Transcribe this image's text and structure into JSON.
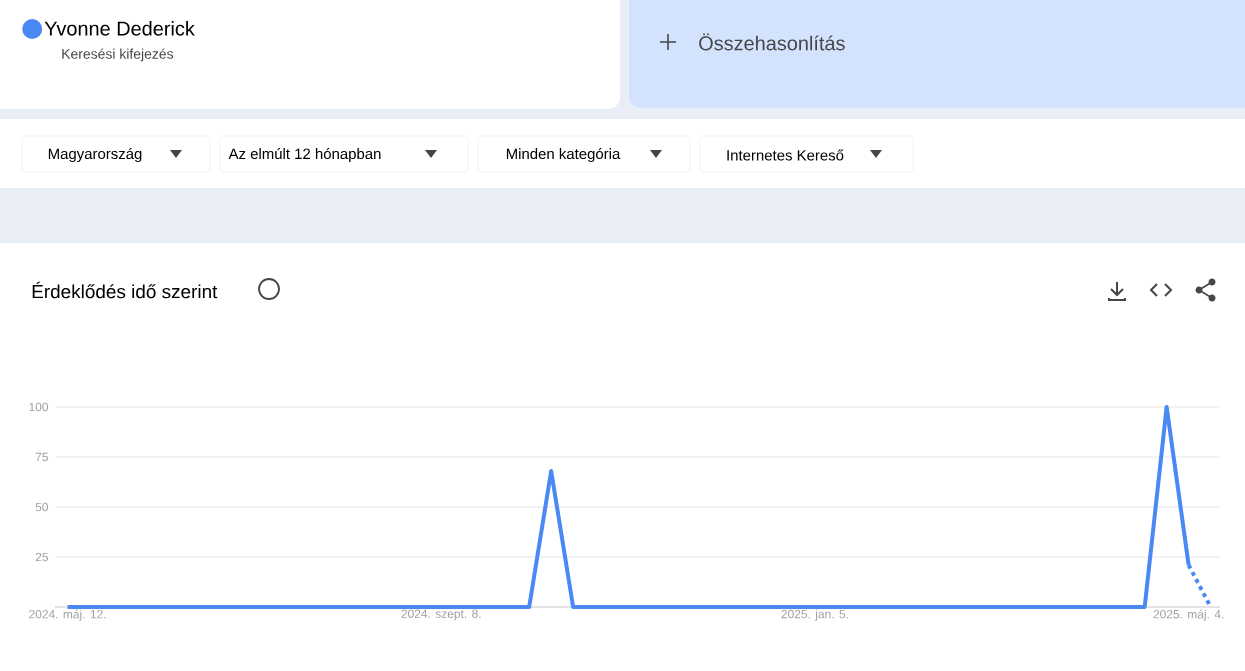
{
  "chart_data": {
    "type": "line",
    "title": "Érdeklődés idő szerint",
    "annotations": [
      "Keresési kifejezés",
      "Összehasonlítás",
      "Magyarország",
      "Az elmúlt 12 hónapban",
      "Minden kategória",
      "Internetes Kereső"
    ],
    "x": [
      "2024-05-12",
      "2024-05-19",
      "2024-05-26",
      "2024-06-02",
      "2024-06-09",
      "2024-06-16",
      "2024-06-23",
      "2024-06-30",
      "2024-07-07",
      "2024-07-14",
      "2024-07-21",
      "2024-07-28",
      "2024-08-04",
      "2024-08-11",
      "2024-08-18",
      "2024-08-25",
      "2024-09-01",
      "2024-09-08",
      "2024-09-15",
      "2024-09-22",
      "2024-09-29",
      "2024-10-06",
      "2024-10-13",
      "2024-10-20",
      "2024-10-27",
      "2024-11-03",
      "2024-11-10",
      "2024-11-17",
      "2024-11-24",
      "2024-12-01",
      "2024-12-08",
      "2024-12-15",
      "2024-12-22",
      "2024-12-29",
      "2025-01-05",
      "2025-01-12",
      "2025-01-19",
      "2025-01-26",
      "2025-02-02",
      "2025-02-09",
      "2025-02-16",
      "2025-02-23",
      "2025-03-02",
      "2025-03-09",
      "2025-03-16",
      "2025-03-23",
      "2025-03-30",
      "2025-04-06",
      "2025-04-13",
      "2025-04-20",
      "2025-04-27",
      "2025-05-04"
    ],
    "series": [
      {
        "name": "Yvonne Dederick",
        "color": "#4a89f3",
        "values": [
          0,
          0,
          0,
          0,
          0,
          0,
          0,
          0,
          0,
          0,
          0,
          0,
          0,
          0,
          0,
          0,
          0,
          0,
          0,
          0,
          0,
          0,
          68,
          0,
          0,
          0,
          0,
          0,
          0,
          0,
          0,
          0,
          0,
          0,
          0,
          0,
          0,
          0,
          0,
          0,
          0,
          0,
          0,
          0,
          0,
          0,
          0,
          0,
          0,
          0,
          100,
          21
        ]
      },
      {
        "color": "#4a89f3",
        "line_style": "dotted",
        "x": [
          "2025-05-04",
          "2025-05-11"
        ],
        "values": [
          21,
          0
        ]
      }
    ],
    "xlim": [
      "2024-05-08",
      "2025-05-14"
    ],
    "xticks": [
      {
        "value": "2024-05-12",
        "label": "2024. máj. 12."
      },
      {
        "value": "2024-09-08",
        "label": "2024. szept. 8."
      },
      {
        "value": "2025-01-05",
        "label": "2025. jan. 5."
      },
      {
        "value": "2025-05-04",
        "label": "2025. máj. 4."
      }
    ],
    "ylim": [
      0,
      100
    ],
    "yticks": [
      25,
      50,
      75,
      100
    ],
    "grid": "y",
    "legend": "top left",
    "marker": "none",
    "line_style": "solid"
  }
}
